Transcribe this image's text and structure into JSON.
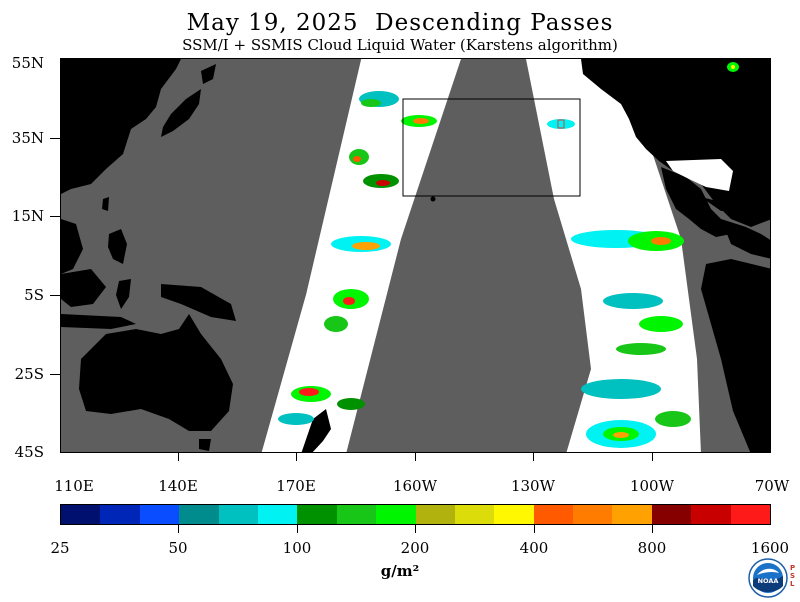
{
  "header": {
    "title": "May 19, 2025  Descending Passes",
    "subtitle": "SSM/I + SSMIS Cloud Liquid Water (Karstens algorithm)"
  },
  "axes": {
    "y_labels": [
      "55N",
      "35N",
      "15N",
      "5S",
      "25S",
      "45S"
    ],
    "x_labels": [
      "110E",
      "140E",
      "170E",
      "160W",
      "130W",
      "100W",
      "70W"
    ]
  },
  "colorbar": {
    "colors": [
      "#00106f",
      "#0026b8",
      "#0a4cff",
      "#008c8c",
      "#00c0c0",
      "#00f2f2",
      "#009100",
      "#17c617",
      "#00f500",
      "#b2b20e",
      "#dcdc0a",
      "#fff800",
      "#ff5a00",
      "#ff7c00",
      "#ffa100",
      "#870000",
      "#c80000",
      "#ff1a1a"
    ],
    "labels": [
      "25",
      "50",
      "100",
      "200",
      "400",
      "800",
      "1600"
    ],
    "units": "g/m²"
  },
  "map_colors": {
    "no_data": "#5e5e5e",
    "land": "#000000",
    "clear_sky": "#ffffff",
    "box_outline": "#000000"
  },
  "logo": {
    "agency": "NOAA",
    "lab": "PSL"
  }
}
